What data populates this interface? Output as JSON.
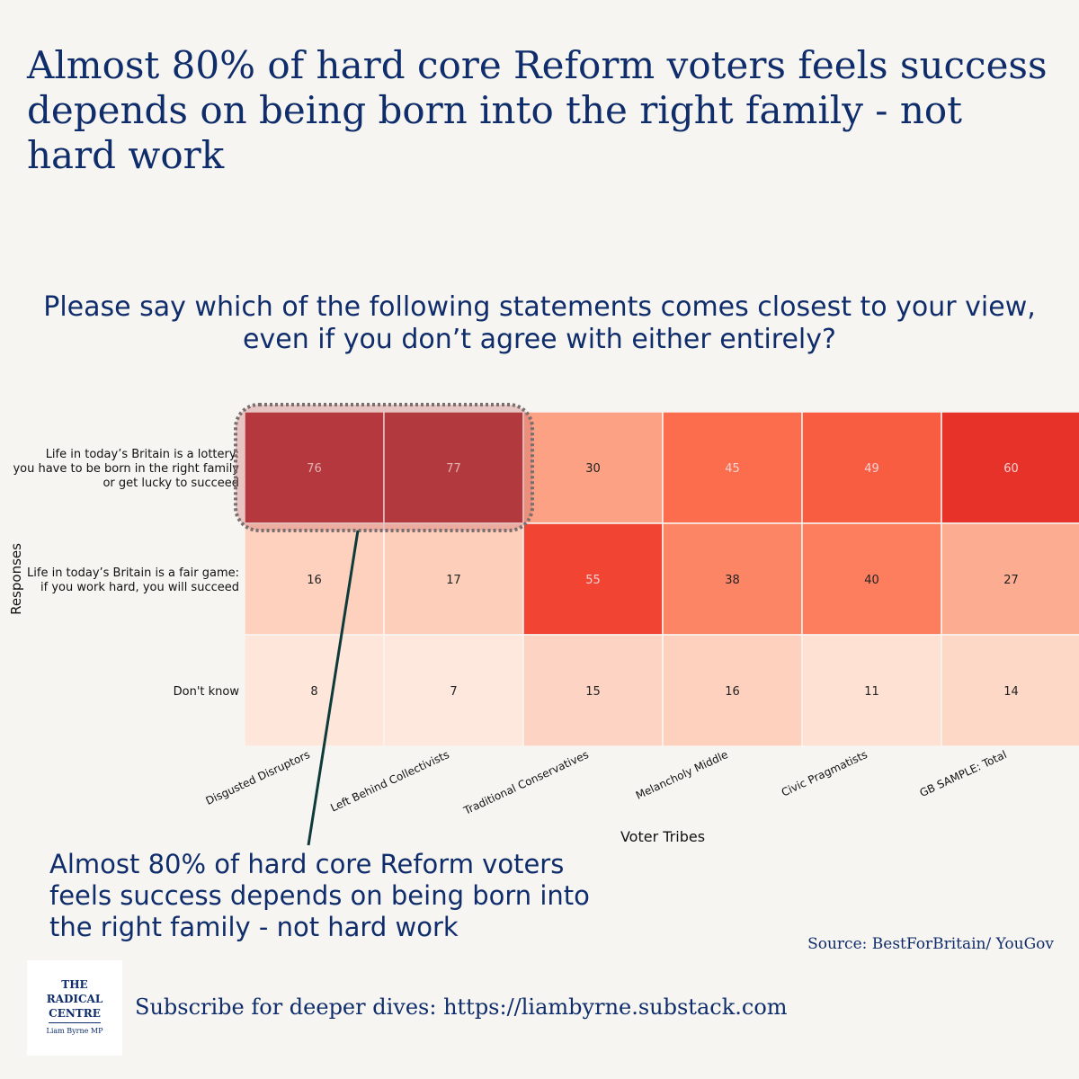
{
  "headline": "Almost 80% of hard core Reform voters feels success depends on being born into the right family - not hard work",
  "question": "Please say which of the following statements comes closest to your view, even if you don’t agree with either entirely?",
  "chart_data": {
    "type": "heatmap",
    "xlabel": "Voter Tribes",
    "ylabel": "Responses",
    "columns": [
      "Disgusted Disruptors",
      "Left Behind Collectivists",
      "Traditional Conservatives",
      "Melancholy Middle",
      "Civic Pragmatists",
      "GB SAMPLE: Total"
    ],
    "rows": [
      {
        "label_lines": [
          "Life in today’s Britain is a lottery:",
          "you have to be born in the right family",
          "or get lucky to succeed"
        ],
        "values": [
          76,
          77,
          30,
          45,
          49,
          60
        ]
      },
      {
        "label_lines": [
          "Life in today’s Britain is a fair game:",
          "if you work hard, you will succeed"
        ],
        "values": [
          16,
          17,
          55,
          38,
          40,
          27
        ]
      },
      {
        "label_lines": [
          "Don't know"
        ],
        "values": [
          8,
          7,
          15,
          16,
          11,
          14
        ]
      }
    ],
    "colorscale": "Reds",
    "value_range": [
      0,
      80
    ],
    "highlight": {
      "row": 0,
      "columns": [
        0,
        1
      ]
    }
  },
  "annotation": "Almost 80% of hard core Reform voters feels success depends on being born into the right family - not hard work",
  "source": "Source: BestForBritain/ YouGov",
  "logo": {
    "line1": "THE",
    "line2": "RADICAL",
    "line3": "CENTRE",
    "line4": "Liam Byrne MP"
  },
  "subscribe": "Subscribe for deeper dives: https://liambyrne.substack.com"
}
